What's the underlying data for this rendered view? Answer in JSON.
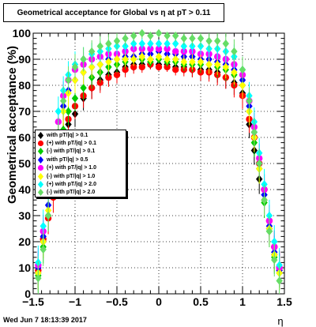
{
  "title": "Geometrical acceptance for Global vs  η at pT > 0.11",
  "timestamp": "Wed Jun  7 18:13:39 2017",
  "chart_data": {
    "type": "scatter",
    "title": "Geometrical acceptance for Global vs  η at pT > 0.11",
    "xlabel": "η",
    "ylabel": "Geometrical acceptance (%)",
    "xlim": [
      -1.5,
      1.5
    ],
    "ylim": [
      0,
      100
    ],
    "x_ticks": [
      "−1.5",
      "−1",
      "−0.5",
      "0",
      "0.5",
      "1",
      "1.5"
    ],
    "y_ticks": [
      "0",
      "10",
      "20",
      "30",
      "40",
      "50",
      "60",
      "70",
      "80",
      "90",
      "100"
    ],
    "grid": true,
    "legend_position": "middle-left",
    "series": [
      {
        "name": "with pT/|q| > 0.1",
        "color": "#000000",
        "shape": "diamond",
        "x": [
          -1.44,
          -1.38,
          -1.32,
          -1.26,
          -1.2,
          -1.14,
          -1.08,
          -1.0,
          -0.9,
          -0.8,
          -0.7,
          -0.6,
          -0.5,
          -0.4,
          -0.3,
          -0.2,
          -0.1,
          0.0,
          0.1,
          0.2,
          0.3,
          0.4,
          0.5,
          0.6,
          0.7,
          0.8,
          0.9,
          1.0,
          1.08,
          1.14,
          1.2,
          1.26,
          1.32,
          1.38,
          1.44
        ],
        "y": [
          8,
          20,
          30,
          42,
          52,
          60,
          65,
          69,
          75,
          79,
          82,
          84,
          85,
          87,
          88,
          88,
          88,
          88,
          88,
          87,
          87,
          86,
          86,
          86,
          85,
          83,
          81,
          77,
          65,
          55,
          44,
          36,
          25,
          15,
          9
        ]
      },
      {
        "name": "(+) with pT/|q| > 0.1",
        "color": "#ff0000",
        "shape": "circle",
        "x": [
          -1.44,
          -1.38,
          -1.32,
          -1.26,
          -1.2,
          -1.14,
          -1.08,
          -1.0,
          -0.9,
          -0.8,
          -0.7,
          -0.6,
          -0.5,
          -0.4,
          -0.3,
          -0.2,
          -0.1,
          0.0,
          0.1,
          0.2,
          0.3,
          0.4,
          0.5,
          0.6,
          0.7,
          0.8,
          0.9,
          1.0,
          1.08,
          1.14,
          1.2,
          1.26,
          1.32,
          1.38,
          1.44
        ],
        "y": [
          9,
          21,
          29,
          37,
          55,
          60,
          67,
          72,
          76,
          79,
          81,
          83,
          84,
          86,
          87,
          87,
          88,
          87,
          87,
          86,
          86,
          86,
          85,
          85,
          84,
          83,
          80,
          76,
          67,
          60,
          50,
          40,
          28,
          18,
          10
        ]
      },
      {
        "name": "(-) with pT/|q| > 0.1",
        "color": "#00cc00",
        "shape": "diamond",
        "x": [
          -1.44,
          -1.38,
          -1.32,
          -1.26,
          -1.2,
          -1.14,
          -1.08,
          -1.0,
          -0.9,
          -0.8,
          -0.7,
          -0.6,
          -0.5,
          -0.4,
          -0.3,
          -0.2,
          -0.1,
          0.0,
          0.1,
          0.2,
          0.3,
          0.4,
          0.5,
          0.6,
          0.7,
          0.8,
          0.9,
          1.0,
          1.08,
          1.14,
          1.2,
          1.26,
          1.32,
          1.38,
          1.44
        ],
        "y": [
          7,
          18,
          30,
          44,
          56,
          63,
          70,
          75,
          79,
          83,
          85,
          87,
          88,
          89,
          90,
          90,
          89,
          90,
          89,
          89,
          88,
          88,
          88,
          88,
          87,
          86,
          84,
          80,
          70,
          58,
          48,
          35,
          24,
          14,
          8
        ]
      },
      {
        "name": "with pT/|q| > 0.5",
        "color": "#0000ff",
        "shape": "diamond",
        "x": [
          -1.44,
          -1.38,
          -1.32,
          -1.26,
          -1.2,
          -1.14,
          -1.08,
          -1.0,
          -0.9,
          -0.8,
          -0.7,
          -0.6,
          -0.5,
          -0.4,
          -0.3,
          -0.2,
          -0.1,
          0.0,
          0.1,
          0.2,
          0.3,
          0.4,
          0.5,
          0.6,
          0.7,
          0.8,
          0.9,
          1.0,
          1.08,
          1.14,
          1.2,
          1.26,
          1.32,
          1.38,
          1.44
        ],
        "y": [
          10,
          22,
          34,
          48,
          62,
          72,
          78,
          82,
          85,
          87,
          88,
          90,
          90,
          91,
          91,
          92,
          92,
          93,
          92,
          92,
          91,
          91,
          90,
          90,
          89,
          88,
          86,
          82,
          72,
          62,
          50,
          38,
          26,
          16,
          9
        ]
      },
      {
        "name": "(+) with pT/|q| > 1.0",
        "color": "#ff00ff",
        "shape": "circle",
        "x": [
          -1.44,
          -1.38,
          -1.32,
          -1.26,
          -1.2,
          -1.14,
          -1.08,
          -1.0,
          -0.9,
          -0.8,
          -0.7,
          -0.6,
          -0.5,
          -0.4,
          -0.3,
          -0.2,
          -0.1,
          0.0,
          0.1,
          0.2,
          0.3,
          0.4,
          0.5,
          0.6,
          0.7,
          0.8,
          0.9,
          1.0,
          1.08,
          1.14,
          1.2,
          1.26,
          1.32,
          1.38,
          1.44
        ],
        "y": [
          11,
          24,
          38,
          52,
          66,
          76,
          82,
          86,
          88,
          90,
          91,
          92,
          92,
          93,
          94,
          94,
          94,
          94,
          94,
          93,
          93,
          93,
          92,
          92,
          91,
          90,
          88,
          84,
          74,
          64,
          52,
          40,
          28,
          18,
          10
        ]
      },
      {
        "name": "(-) with pT/|q| > 1.0",
        "color": "#ffff00",
        "shape": "diamond",
        "x": [
          -1.44,
          -1.38,
          -1.32,
          -1.26,
          -1.2,
          -1.14,
          -1.08,
          -1.0,
          -0.9,
          -0.8,
          -0.7,
          -0.6,
          -0.5,
          -0.4,
          -0.3,
          -0.2,
          -0.1,
          0.0,
          0.1,
          0.2,
          0.3,
          0.4,
          0.5,
          0.6,
          0.7,
          0.8,
          0.9,
          1.0,
          1.08,
          1.14,
          1.2,
          1.26,
          1.32,
          1.38,
          1.44
        ],
        "y": [
          8,
          20,
          32,
          46,
          60,
          70,
          77,
          82,
          85,
          87,
          88,
          89,
          90,
          90,
          90,
          91,
          90,
          91,
          90,
          90,
          89,
          89,
          89,
          88,
          88,
          87,
          85,
          80,
          70,
          60,
          48,
          36,
          25,
          15,
          8
        ]
      },
      {
        "name": "(+) with pT/|q| > 2.0",
        "color": "#00ffff",
        "shape": "diamond",
        "x": [
          -1.44,
          -1.38,
          -1.32,
          -1.26,
          -1.2,
          -1.14,
          -1.08,
          -1.0,
          -0.9,
          -0.8,
          -0.7,
          -0.6,
          -0.5,
          -0.4,
          -0.3,
          -0.2,
          -0.1,
          0.0,
          0.1,
          0.2,
          0.3,
          0.4,
          0.5,
          0.6,
          0.7,
          0.8,
          0.9,
          1.0,
          1.08,
          1.14,
          1.2,
          1.26,
          1.32,
          1.38,
          1.44
        ],
        "y": [
          12,
          26,
          40,
          56,
          70,
          78,
          84,
          88,
          90,
          92,
          93,
          94,
          95,
          95,
          96,
          96,
          96,
          96,
          96,
          96,
          95,
          95,
          95,
          94,
          94,
          93,
          91,
          86,
          76,
          66,
          54,
          42,
          30,
          20,
          11
        ]
      },
      {
        "name": "(-) with pT/|q| > 2.0",
        "color": "#66dd66",
        "shape": "diamond",
        "x": [
          -1.44,
          -1.38,
          -1.32,
          -1.26,
          -1.2,
          -1.14,
          -1.08,
          -1.0,
          -0.9,
          -0.8,
          -0.7,
          -0.6,
          -0.5,
          -0.4,
          -0.3,
          -0.2,
          -0.1,
          0.0,
          0.1,
          0.2,
          0.3,
          0.4,
          0.5,
          0.6,
          0.7,
          0.8,
          0.9,
          1.0,
          1.08,
          1.14,
          1.2,
          1.26,
          1.32,
          1.38,
          1.44
        ],
        "y": [
          6,
          17,
          30,
          46,
          62,
          74,
          82,
          87,
          90,
          93,
          95,
          96,
          97,
          98,
          99,
          100,
          99,
          100,
          99,
          99,
          98,
          98,
          98,
          97,
          97,
          96,
          93,
          86,
          74,
          62,
          50,
          36,
          24,
          13,
          5
        ]
      }
    ]
  }
}
